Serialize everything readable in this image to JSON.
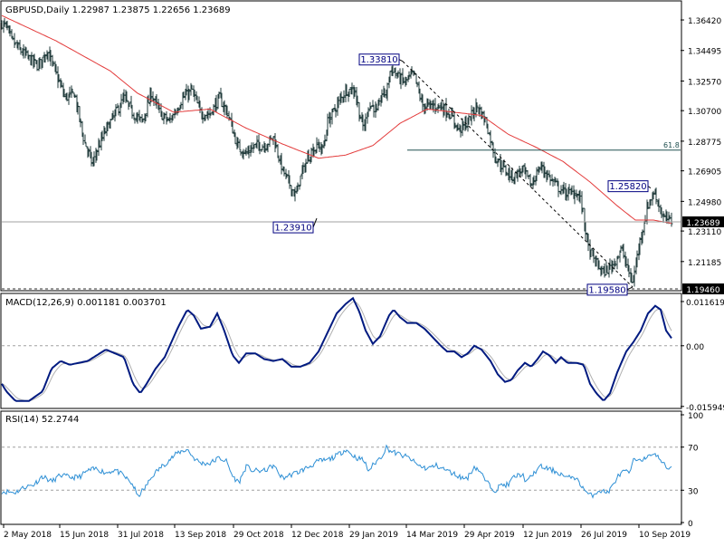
{
  "colors": {
    "price": "#1f3a3a",
    "ma": "#e33b3b",
    "macd": "#001a80",
    "signal": "#b0b0b0",
    "rsi": "#2d8fd5",
    "grid": "#a0a0a0",
    "label_border": "#000080",
    "label_text": "#000080"
  },
  "chart_data": [
    {
      "type": "ohlc",
      "title": "GBPUSD,Daily  1.22987 1.23875 1.22656 1.23689",
      "y_ticks": [
        "1.36420",
        "1.34495",
        "1.32570",
        "1.30700",
        "1.28775",
        "1.26905",
        "1.24980",
        "1.23110",
        "1.21185"
      ],
      "current_price_label": "1.23689",
      "current_price": 1.23689,
      "support_label": "1.19460",
      "support_price": 1.1946,
      "fib_label": "61.8",
      "fib_price": 1.2821,
      "ylim": [
        1.1946,
        1.3745
      ],
      "annotations": [
        {
          "text": "1.33810",
          "value": 1.3381
        },
        {
          "text": "1.23910",
          "value": 1.2391
        },
        {
          "text": "1.25820",
          "value": 1.2582
        },
        {
          "text": "1.19580",
          "value": 1.1958
        }
      ],
      "series": [
        {
          "name": "GBPUSD",
          "style": "ohlc-bars"
        },
        {
          "style": "moving-average"
        }
      ],
      "close_keypoints": [
        [
          0,
          1.362
        ],
        [
          5,
          1.36
        ],
        [
          10,
          1.352
        ],
        [
          20,
          1.345
        ],
        [
          30,
          1.34
        ],
        [
          40,
          1.335
        ],
        [
          50,
          1.345
        ],
        [
          60,
          1.33
        ],
        [
          70,
          1.315
        ],
        [
          80,
          1.318
        ],
        [
          90,
          1.29
        ],
        [
          100,
          1.273
        ],
        [
          105,
          1.282
        ],
        [
          115,
          1.295
        ],
        [
          125,
          1.305
        ],
        [
          135,
          1.315
        ],
        [
          145,
          1.305
        ],
        [
          155,
          1.3
        ],
        [
          165,
          1.318
        ],
        [
          175,
          1.305
        ],
        [
          185,
          1.3
        ],
        [
          200,
          1.315
        ],
        [
          210,
          1.32
        ],
        [
          220,
          1.305
        ],
        [
          230,
          1.305
        ],
        [
          240,
          1.315
        ],
        [
          250,
          1.305
        ],
        [
          260,
          1.285
        ],
        [
          270,
          1.28
        ],
        [
          280,
          1.285
        ],
        [
          290,
          1.285
        ],
        [
          300,
          1.29
        ],
        [
          310,
          1.27
        ],
        [
          320,
          1.258
        ],
        [
          325,
          1.253
        ],
        [
          330,
          1.265
        ],
        [
          340,
          1.28
        ],
        [
          350,
          1.285
        ],
        [
          355,
          1.282
        ],
        [
          360,
          1.3
        ],
        [
          370,
          1.31
        ],
        [
          380,
          1.32
        ],
        [
          390,
          1.32
        ],
        [
          395,
          1.305
        ],
        [
          400,
          1.295
        ],
        [
          405,
          1.31
        ],
        [
          410,
          1.31
        ],
        [
          415,
          1.305
        ],
        [
          420,
          1.318
        ],
        [
          425,
          1.318
        ],
        [
          430,
          1.335
        ],
        [
          438,
          1.328
        ],
        [
          445,
          1.325
        ],
        [
          455,
          1.33
        ],
        [
          465,
          1.31
        ],
        [
          475,
          1.31
        ],
        [
          485,
          1.31
        ],
        [
          495,
          1.305
        ],
        [
          505,
          1.295
        ],
        [
          515,
          1.3
        ],
        [
          525,
          1.31
        ],
        [
          535,
          1.3
        ],
        [
          545,
          1.278
        ],
        [
          555,
          1.27
        ],
        [
          565,
          1.265
        ],
        [
          575,
          1.27
        ],
        [
          585,
          1.26
        ],
        [
          595,
          1.272
        ],
        [
          605,
          1.265
        ],
        [
          615,
          1.258
        ],
        [
          625,
          1.255
        ],
        [
          635,
          1.255
        ],
        [
          640,
          1.25
        ],
        [
          648,
          1.22
        ],
        [
          655,
          1.212
        ],
        [
          665,
          1.205
        ],
        [
          675,
          1.21
        ],
        [
          685,
          1.22
        ],
        [
          690,
          1.21
        ],
        [
          697,
          1.198
        ],
        [
          705,
          1.225
        ],
        [
          715,
          1.25
        ],
        [
          722,
          1.255
        ],
        [
          730,
          1.24
        ],
        [
          740,
          1.237
        ]
      ],
      "ma_keypoints": [
        [
          0,
          1.367
        ],
        [
          60,
          1.351
        ],
        [
          120,
          1.332
        ],
        [
          150,
          1.318
        ],
        [
          190,
          1.306
        ],
        [
          230,
          1.308
        ],
        [
          270,
          1.296
        ],
        [
          310,
          1.286
        ],
        [
          350,
          1.277
        ],
        [
          380,
          1.279
        ],
        [
          410,
          1.285
        ],
        [
          440,
          1.299
        ],
        [
          470,
          1.308
        ],
        [
          500,
          1.306
        ],
        [
          530,
          1.304
        ],
        [
          560,
          1.292
        ],
        [
          590,
          1.284
        ],
        [
          620,
          1.275
        ],
        [
          650,
          1.262
        ],
        [
          680,
          1.247
        ],
        [
          700,
          1.238
        ],
        [
          720,
          1.238
        ],
        [
          740,
          1.236
        ]
      ]
    },
    {
      "type": "line",
      "title": "MACD(12,26,9) 0.001181 0.003701",
      "y_ticks": [
        "0.011619",
        "0.00",
        "-0.015949"
      ],
      "ylim": [
        -0.016,
        0.0128
      ],
      "series": [
        {
          "style": "thick-line"
        },
        {
          "style": "thin-line"
        }
      ],
      "macd_keypoints": [
        [
          0,
          -0.01
        ],
        [
          5,
          -0.012
        ],
        [
          15,
          -0.0145
        ],
        [
          30,
          -0.0145
        ],
        [
          45,
          -0.012
        ],
        [
          55,
          -0.006
        ],
        [
          65,
          -0.004
        ],
        [
          75,
          -0.005
        ],
        [
          85,
          -0.0045
        ],
        [
          95,
          -0.004
        ],
        [
          105,
          -0.0025
        ],
        [
          115,
          -0.001
        ],
        [
          125,
          -0.002
        ],
        [
          135,
          -0.003
        ],
        [
          145,
          -0.01
        ],
        [
          153,
          -0.0125
        ],
        [
          160,
          -0.01
        ],
        [
          170,
          -0.006
        ],
        [
          180,
          -0.003
        ],
        [
          195,
          0.005
        ],
        [
          205,
          0.0095
        ],
        [
          212,
          0.008
        ],
        [
          220,
          0.0045
        ],
        [
          230,
          0.005
        ],
        [
          238,
          0.0085
        ],
        [
          245,
          0.0045
        ],
        [
          255,
          -0.0025
        ],
        [
          262,
          -0.0045
        ],
        [
          270,
          -0.002
        ],
        [
          280,
          -0.002
        ],
        [
          290,
          -0.0035
        ],
        [
          300,
          -0.004
        ],
        [
          310,
          -0.0035
        ],
        [
          320,
          -0.0055
        ],
        [
          330,
          -0.0055
        ],
        [
          340,
          -0.0045
        ],
        [
          350,
          -0.0015
        ],
        [
          360,
          0.0035
        ],
        [
          370,
          0.0085
        ],
        [
          380,
          0.011
        ],
        [
          388,
          0.0125
        ],
        [
          395,
          0.009
        ],
        [
          402,
          0.004
        ],
        [
          410,
          0.0005
        ],
        [
          418,
          0.0025
        ],
        [
          428,
          0.008
        ],
        [
          433,
          0.0095
        ],
        [
          440,
          0.0075
        ],
        [
          448,
          0.006
        ],
        [
          458,
          0.006
        ],
        [
          467,
          0.0045
        ],
        [
          475,
          0.0025
        ],
        [
          485,
          0.0
        ],
        [
          492,
          -0.0015
        ],
        [
          500,
          -0.0015
        ],
        [
          508,
          -0.003
        ],
        [
          515,
          -0.002
        ],
        [
          522,
          0.0
        ],
        [
          530,
          -0.001
        ],
        [
          540,
          -0.004
        ],
        [
          548,
          -0.0075
        ],
        [
          556,
          -0.0095
        ],
        [
          563,
          -0.009
        ],
        [
          570,
          -0.0065
        ],
        [
          578,
          -0.0045
        ],
        [
          585,
          -0.0055
        ],
        [
          592,
          -0.0035
        ],
        [
          598,
          -0.0015
        ],
        [
          605,
          -0.0025
        ],
        [
          612,
          -0.0045
        ],
        [
          618,
          -0.003
        ],
        [
          625,
          -0.0045
        ],
        [
          635,
          -0.0045
        ],
        [
          643,
          -0.005
        ],
        [
          650,
          -0.01
        ],
        [
          657,
          -0.0125
        ],
        [
          665,
          -0.0145
        ],
        [
          672,
          -0.0125
        ],
        [
          680,
          -0.007
        ],
        [
          690,
          -0.0015
        ],
        [
          698,
          0.001
        ],
        [
          706,
          0.004
        ],
        [
          714,
          0.0085
        ],
        [
          722,
          0.0105
        ],
        [
          728,
          0.0095
        ],
        [
          734,
          0.004
        ],
        [
          740,
          0.002
        ]
      ]
    },
    {
      "type": "line",
      "title": "RSI(14) 52.2744",
      "y_ticks": [
        "100",
        "70",
        "30",
        "0"
      ],
      "levels": [
        70,
        30
      ],
      "ylim": [
        0,
        100
      ],
      "series": [
        {
          "style": "thin-line"
        }
      ],
      "rsi_keypoints": [
        [
          0,
          29
        ],
        [
          15,
          28
        ],
        [
          25,
          33
        ],
        [
          35,
          35
        ],
        [
          45,
          43
        ],
        [
          55,
          38
        ],
        [
          65,
          44
        ],
        [
          75,
          42
        ],
        [
          85,
          42
        ],
        [
          95,
          48
        ],
        [
          105,
          50
        ],
        [
          115,
          46
        ],
        [
          125,
          49
        ],
        [
          135,
          43
        ],
        [
          145,
          35
        ],
        [
          150,
          24
        ],
        [
          158,
          32
        ],
        [
          168,
          45
        ],
        [
          178,
          53
        ],
        [
          185,
          58
        ],
        [
          195,
          65
        ],
        [
          205,
          68
        ],
        [
          212,
          60
        ],
        [
          220,
          55
        ],
        [
          230,
          55
        ],
        [
          240,
          60
        ],
        [
          248,
          57
        ],
        [
          255,
          43
        ],
        [
          262,
          37
        ],
        [
          270,
          52
        ],
        [
          278,
          48
        ],
        [
          290,
          48
        ],
        [
          300,
          53
        ],
        [
          310,
          41
        ],
        [
          318,
          44
        ],
        [
          328,
          47
        ],
        [
          340,
          52
        ],
        [
          350,
          57
        ],
        [
          360,
          58
        ],
        [
          370,
          62
        ],
        [
          380,
          68
        ],
        [
          385,
          64
        ],
        [
          392,
          60
        ],
        [
          400,
          58
        ],
        [
          405,
          48
        ],
        [
          412,
          55
        ],
        [
          420,
          62
        ],
        [
          425,
          70
        ],
        [
          430,
          66
        ],
        [
          440,
          63
        ],
        [
          450,
          60
        ],
        [
          460,
          53
        ],
        [
          470,
          50
        ],
        [
          480,
          53
        ],
        [
          490,
          49
        ],
        [
          500,
          45
        ],
        [
          510,
          41
        ],
        [
          515,
          42
        ],
        [
          522,
          52
        ],
        [
          528,
          48
        ],
        [
          535,
          38
        ],
        [
          545,
          30
        ],
        [
          552,
          35
        ],
        [
          560,
          35
        ],
        [
          565,
          42
        ],
        [
          575,
          45
        ],
        [
          580,
          37
        ],
        [
          588,
          46
        ],
        [
          595,
          52
        ],
        [
          603,
          50
        ],
        [
          610,
          48
        ],
        [
          618,
          45
        ],
        [
          625,
          41
        ],
        [
          632,
          43
        ],
        [
          640,
          35
        ],
        [
          648,
          26
        ],
        [
          652,
          25
        ],
        [
          660,
          30
        ],
        [
          668,
          28
        ],
        [
          672,
          30
        ],
        [
          680,
          42
        ],
        [
          688,
          48
        ],
        [
          693,
          45
        ],
        [
          698,
          57
        ],
        [
          705,
          60
        ],
        [
          712,
          58
        ],
        [
          718,
          65
        ],
        [
          722,
          63
        ],
        [
          728,
          58
        ],
        [
          735,
          50
        ],
        [
          740,
          52
        ]
      ]
    }
  ],
  "x_axis": {
    "labels": [
      "2 May 2018",
      "15 Jun 2018",
      "31 Jul 2018",
      "13 Sep 2018",
      "29 Oct 2018",
      "12 Dec 2018",
      "29 Jan 2019",
      "14 Mar 2019",
      "29 Apr 2019",
      "12 Jun 2019",
      "26 Jul 2019",
      "10 Sep 2019"
    ]
  }
}
